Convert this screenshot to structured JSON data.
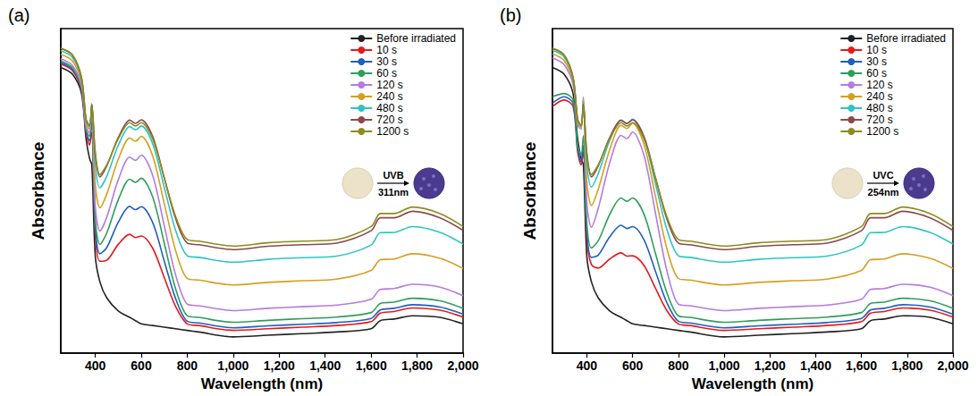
{
  "chart_data": [
    {
      "type": "line",
      "title": "(a)",
      "x_label": "Wavelength (nm)",
      "y_label": "Absorbance",
      "annotations": [
        "UVB",
        "311nm"
      ],
      "x": [
        250,
        300,
        340,
        360,
        375,
        385,
        400,
        420,
        450,
        500,
        550,
        575,
        600,
        650,
        700,
        750,
        800,
        850,
        1000,
        1150,
        1300,
        1450,
        1600,
        1640,
        1700,
        1780,
        1900,
        2000
      ],
      "xlim": [
        250,
        2000
      ],
      "xticks": [
        400,
        600,
        800,
        1000,
        1200,
        1400,
        1600,
        1800,
        2000
      ],
      "ylim": [
        0,
        1
      ],
      "tick_labels": "x",
      "grid": false,
      "legend": "upper right",
      "series": [
        {
          "name": "Before irradiated",
          "color": "#222222",
          "values": [
            0.88,
            0.86,
            0.8,
            0.66,
            0.6,
            0.58,
            0.3,
            0.22,
            0.17,
            0.13,
            0.11,
            0.1,
            0.09,
            0.085,
            0.08,
            0.075,
            0.07,
            0.065,
            0.05,
            0.055,
            0.06,
            0.065,
            0.075,
            0.1,
            0.105,
            0.115,
            0.11,
            0.09
          ]
        },
        {
          "name": "10 s",
          "color": "#e41a1c",
          "values": [
            0.891,
            0.871,
            0.81,
            0.678,
            0.641,
            0.68,
            0.363,
            0.283,
            0.286,
            0.335,
            0.366,
            0.356,
            0.361,
            0.323,
            0.233,
            0.143,
            0.09,
            0.085,
            0.07,
            0.075,
            0.08,
            0.085,
            0.097,
            0.123,
            0.128,
            0.139,
            0.132,
            0.111
          ]
        },
        {
          "name": "30 s",
          "color": "#1f5fbf",
          "values": [
            0.895,
            0.875,
            0.814,
            0.684,
            0.654,
            0.712,
            0.385,
            0.306,
            0.325,
            0.403,
            0.452,
            0.442,
            0.451,
            0.402,
            0.284,
            0.167,
            0.098,
            0.093,
            0.078,
            0.084,
            0.089,
            0.094,
            0.107,
            0.133,
            0.138,
            0.149,
            0.142,
            0.12
          ]
        },
        {
          "name": "60 s",
          "color": "#2e9e5b",
          "values": [
            0.9,
            0.88,
            0.818,
            0.69,
            0.668,
            0.743,
            0.413,
            0.335,
            0.37,
            0.472,
            0.536,
            0.526,
            0.539,
            0.481,
            0.339,
            0.197,
            0.115,
            0.11,
            0.095,
            0.101,
            0.106,
            0.111,
            0.125,
            0.153,
            0.157,
            0.169,
            0.161,
            0.138
          ]
        },
        {
          "name": "120 s",
          "color": "#b57be0",
          "values": [
            0.907,
            0.887,
            0.824,
            0.697,
            0.679,
            0.762,
            0.453,
            0.376,
            0.419,
            0.534,
            0.604,
            0.594,
            0.61,
            0.547,
            0.393,
            0.24,
            0.151,
            0.146,
            0.131,
            0.138,
            0.143,
            0.148,
            0.166,
            0.196,
            0.199,
            0.212,
            0.203,
            0.177
          ]
        },
        {
          "name": "240 s",
          "color": "#d4a020",
          "values": [
            0.921,
            0.901,
            0.835,
            0.707,
            0.69,
            0.769,
            0.522,
            0.448,
            0.49,
            0.597,
            0.663,
            0.653,
            0.668,
            0.607,
            0.461,
            0.315,
            0.23,
            0.225,
            0.21,
            0.218,
            0.223,
            0.228,
            0.255,
            0.288,
            0.29,
            0.306,
            0.292,
            0.261
          ]
        },
        {
          "name": "480 s",
          "color": "#2ec4c4",
          "values": [
            0.932,
            0.912,
            0.844,
            0.715,
            0.697,
            0.767,
            0.58,
            0.509,
            0.545,
            0.64,
            0.698,
            0.688,
            0.7,
            0.645,
            0.511,
            0.377,
            0.3,
            0.295,
            0.28,
            0.289,
            0.294,
            0.299,
            0.333,
            0.371,
            0.372,
            0.39,
            0.372,
            0.336
          ]
        },
        {
          "name": "720 s",
          "color": "#8b4a4a",
          "values": [
            0.939,
            0.919,
            0.849,
            0.72,
            0.701,
            0.766,
            0.613,
            0.543,
            0.577,
            0.664,
            0.718,
            0.708,
            0.719,
            0.667,
            0.54,
            0.413,
            0.339,
            0.334,
            0.319,
            0.329,
            0.334,
            0.339,
            0.377,
            0.417,
            0.417,
            0.437,
            0.417,
            0.378
          ]
        },
        {
          "name": "1200 s",
          "color": "#8c8c1e",
          "values": [
            0.94,
            0.92,
            0.85,
            0.72,
            0.7,
            0.76,
            0.62,
            0.55,
            0.58,
            0.66,
            0.71,
            0.7,
            0.71,
            0.66,
            0.54,
            0.42,
            0.35,
            0.345,
            0.33,
            0.34,
            0.345,
            0.35,
            0.39,
            0.43,
            0.43,
            0.45,
            0.43,
            0.39
          ]
        }
      ]
    },
    {
      "type": "line",
      "title": "(b)",
      "x_label": "Wavelength (nm)",
      "y_label": "Absorbance",
      "annotations": [
        "UVC",
        "254nm"
      ],
      "x": [
        250,
        300,
        340,
        360,
        375,
        385,
        400,
        420,
        450,
        500,
        550,
        575,
        600,
        650,
        700,
        750,
        800,
        850,
        1000,
        1150,
        1300,
        1450,
        1600,
        1640,
        1700,
        1780,
        1900,
        2000
      ],
      "xlim": [
        250,
        2000
      ],
      "xticks": [
        400,
        600,
        800,
        1000,
        1200,
        1400,
        1600,
        1800,
        2000
      ],
      "ylim": [
        0,
        1
      ],
      "tick_labels": "x",
      "grid": false,
      "legend": "upper right",
      "series": [
        {
          "name": "Before irradiated",
          "color": "#222222",
          "values": [
            0.88,
            0.86,
            0.8,
            0.66,
            0.6,
            0.58,
            0.3,
            0.22,
            0.17,
            0.13,
            0.11,
            0.1,
            0.09,
            0.085,
            0.08,
            0.075,
            0.07,
            0.065,
            0.05,
            0.055,
            0.06,
            0.065,
            0.075,
            0.1,
            0.105,
            0.115,
            0.11,
            0.09
          ]
        },
        {
          "name": "10 s",
          "color": "#e41a1c",
          "values": [
            0.76,
            0.78,
            0.76,
            0.62,
            0.58,
            0.62,
            0.352,
            0.273,
            0.262,
            0.29,
            0.309,
            0.299,
            0.3,
            0.27,
            0.2,
            0.131,
            0.09,
            0.085,
            0.07,
            0.075,
            0.08,
            0.085,
            0.097,
            0.123,
            0.128,
            0.139,
            0.132,
            0.111
          ]
        },
        {
          "name": "30 s",
          "color": "#1f5fbf",
          "values": [
            0.77,
            0.79,
            0.77,
            0.63,
            0.59,
            0.64,
            0.374,
            0.295,
            0.302,
            0.358,
            0.394,
            0.384,
            0.39,
            0.349,
            0.252,
            0.155,
            0.098,
            0.093,
            0.078,
            0.084,
            0.089,
            0.094,
            0.107,
            0.133,
            0.138,
            0.149,
            0.142,
            0.12
          ]
        },
        {
          "name": "60 s",
          "color": "#2e9e5b",
          "values": [
            0.79,
            0.8,
            0.78,
            0.64,
            0.61,
            0.67,
            0.402,
            0.324,
            0.346,
            0.427,
            0.478,
            0.468,
            0.478,
            0.428,
            0.307,
            0.186,
            0.115,
            0.11,
            0.095,
            0.101,
            0.106,
            0.111,
            0.125,
            0.153,
            0.157,
            0.169,
            0.161,
            0.138
          ]
        },
        {
          "name": "120 s",
          "color": "#b57be0",
          "values": [
            0.91,
            0.89,
            0.827,
            0.702,
            0.69,
            0.79,
            0.465,
            0.388,
            0.446,
            0.586,
            0.671,
            0.661,
            0.681,
            0.609,
            0.431,
            0.254,
            0.151,
            0.146,
            0.131,
            0.138,
            0.143,
            0.148,
            0.166,
            0.196,
            0.199,
            0.212,
            0.203,
            0.177
          ]
        },
        {
          "name": "240 s",
          "color": "#d4a020",
          "values": [
            0.922,
            0.902,
            0.836,
            0.71,
            0.696,
            0.784,
            0.529,
            0.455,
            0.505,
            0.627,
            0.702,
            0.692,
            0.709,
            0.643,
            0.483,
            0.322,
            0.23,
            0.225,
            0.21,
            0.218,
            0.223,
            0.228,
            0.255,
            0.288,
            0.29,
            0.306,
            0.292,
            0.261
          ]
        },
        {
          "name": "480 s",
          "color": "#2ec4c4",
          "values": [
            0.933,
            0.913,
            0.845,
            0.716,
            0.7,
            0.774,
            0.584,
            0.512,
            0.553,
            0.655,
            0.717,
            0.707,
            0.721,
            0.663,
            0.522,
            0.381,
            0.3,
            0.295,
            0.28,
            0.289,
            0.294,
            0.299,
            0.333,
            0.371,
            0.372,
            0.39,
            0.372,
            0.336
          ]
        },
        {
          "name": "720 s",
          "color": "#8b4a4a",
          "values": [
            0.939,
            0.919,
            0.849,
            0.72,
            0.701,
            0.766,
            0.613,
            0.543,
            0.577,
            0.664,
            0.718,
            0.708,
            0.719,
            0.667,
            0.54,
            0.413,
            0.339,
            0.334,
            0.319,
            0.329,
            0.334,
            0.339,
            0.377,
            0.417,
            0.417,
            0.437,
            0.417,
            0.378
          ]
        },
        {
          "name": "1200 s",
          "color": "#8c8c1e",
          "values": [
            0.94,
            0.92,
            0.85,
            0.72,
            0.7,
            0.76,
            0.62,
            0.55,
            0.58,
            0.66,
            0.71,
            0.7,
            0.71,
            0.66,
            0.54,
            0.42,
            0.35,
            0.345,
            0.33,
            0.34,
            0.345,
            0.35,
            0.39,
            0.43,
            0.43,
            0.45,
            0.43,
            0.39
          ]
        }
      ]
    }
  ]
}
